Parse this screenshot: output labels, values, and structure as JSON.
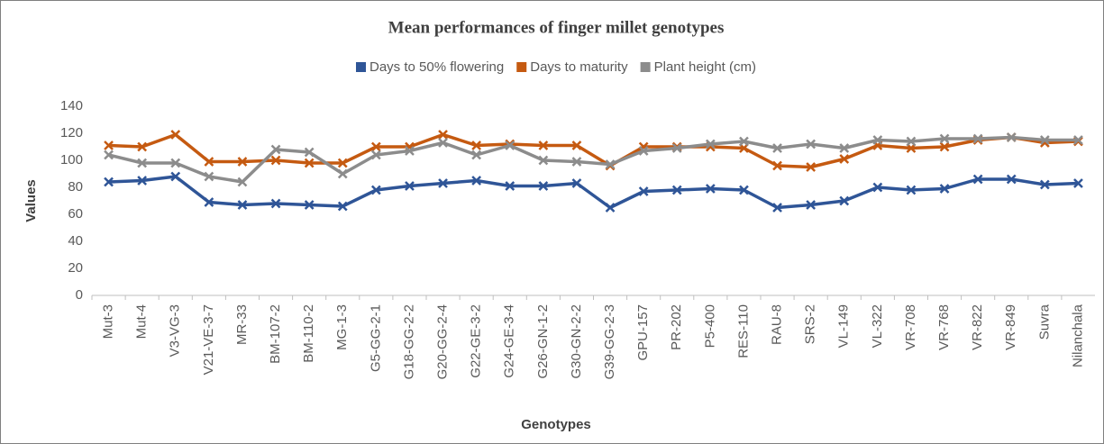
{
  "chart_data": {
    "type": "line",
    "title": "Mean performances  of finger millet genotypes",
    "x_label": "Genotypes",
    "y_label": "Values",
    "categories": [
      "Mut-3",
      "Mut-4",
      "V3-VG-3",
      "V21-VE-3-7",
      "MR-33",
      "BM-107-2",
      "BM-110-2",
      "MG-1-3",
      "G5-GG-2-1",
      "G18-GG-2-2",
      "G20-GG-2-4",
      "G22-GE-3-2",
      "G24-GE-3-4",
      "G26-GN-1-2",
      "G30-GN-2-2",
      "G39-GG-2-3",
      "GPU-157",
      "PR-202",
      "P5-400",
      "RES-110",
      "RAU-8",
      "SRS-2",
      "VL-149",
      "VL-322",
      "VR-708",
      "VR-768",
      "VR-822",
      "VR-849",
      "Suvra",
      "Nilanchala"
    ],
    "series": [
      {
        "name": "Days to 50% flowering",
        "color": "#2F5597",
        "values": [
          84,
          85,
          88,
          69,
          67,
          68,
          67,
          66,
          78,
          81,
          83,
          85,
          81,
          81,
          83,
          65,
          77,
          78,
          79,
          78,
          65,
          67,
          70,
          80,
          78,
          79,
          86,
          86,
          82,
          83
        ]
      },
      {
        "name": "Days to maturity",
        "color": "#C55A11",
        "values": [
          111,
          110,
          119,
          99,
          99,
          100,
          98,
          98,
          110,
          110,
          119,
          111,
          112,
          111,
          111,
          96,
          110,
          110,
          110,
          109,
          96,
          95,
          101,
          111,
          109,
          110,
          115,
          117,
          113,
          114
        ]
      },
      {
        "name": "Plant height (cm)",
        "color": "#8C8C8C",
        "values": [
          104,
          98,
          98,
          88,
          84,
          108,
          106,
          90,
          104,
          107,
          113,
          104,
          111,
          100,
          99,
          97,
          107,
          109,
          112,
          114,
          109,
          112,
          109,
          115,
          114,
          116,
          116,
          117,
          115,
          115
        ]
      }
    ],
    "ylim": [
      0,
      140
    ],
    "yticks": [
      0,
      20,
      40,
      60,
      80,
      100,
      120,
      140
    ],
    "grid": false,
    "legend": "top"
  }
}
